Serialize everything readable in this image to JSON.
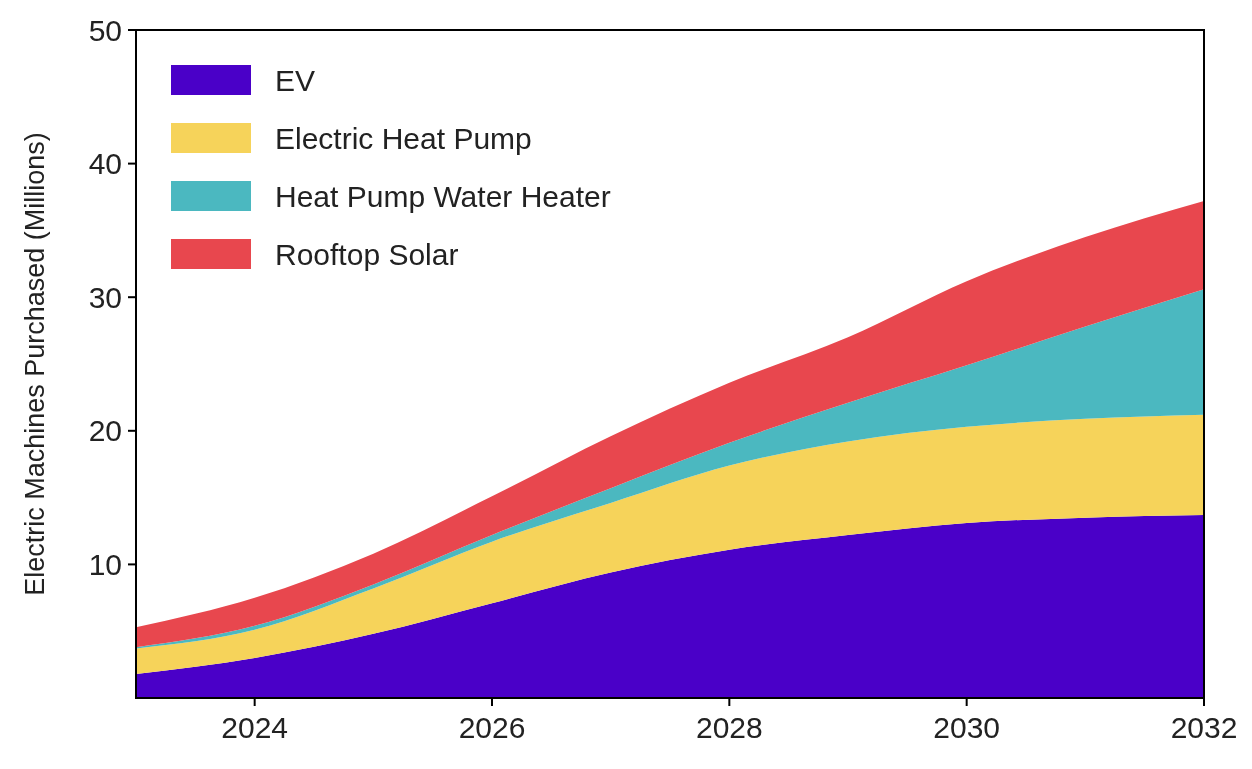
{
  "chart_data": {
    "type": "area",
    "stacked": true,
    "ylabel": "Electric Machines Purchased (Millions)",
    "x": [
      2023,
      2024,
      2025,
      2026,
      2027,
      2028,
      2029,
      2030,
      2031,
      2032
    ],
    "xlim": [
      2023,
      2032
    ],
    "xticks": [
      2024,
      2026,
      2028,
      2030,
      2032
    ],
    "ylim": [
      0,
      50
    ],
    "yticks": [
      10,
      20,
      30,
      40,
      50
    ],
    "legend": "top left",
    "grid": false,
    "series": [
      {
        "name": "EV",
        "color": "#4a00c8",
        "values": [
          1.8,
          3.0,
          4.8,
          7.1,
          9.4,
          11.1,
          12.2,
          13.1,
          13.5,
          13.7
        ]
      },
      {
        "name": "Electric Heat Pump",
        "color": "#f6d35a",
        "values": [
          1.9,
          2.1,
          3.4,
          4.6,
          5.2,
          6.3,
          7.0,
          7.2,
          7.4,
          7.5
        ]
      },
      {
        "name": "Heat Pump Water Heater",
        "color": "#4bb8c0",
        "values": [
          0.1,
          0.3,
          0.3,
          0.5,
          1.1,
          1.7,
          2.9,
          4.6,
          6.9,
          9.4
        ]
      },
      {
        "name": "Rooftop Solar",
        "color": "#e8474e",
        "values": [
          1.5,
          2.1,
          2.3,
          2.9,
          3.9,
          4.5,
          4.9,
          6.3,
          6.7,
          6.6
        ]
      }
    ]
  }
}
